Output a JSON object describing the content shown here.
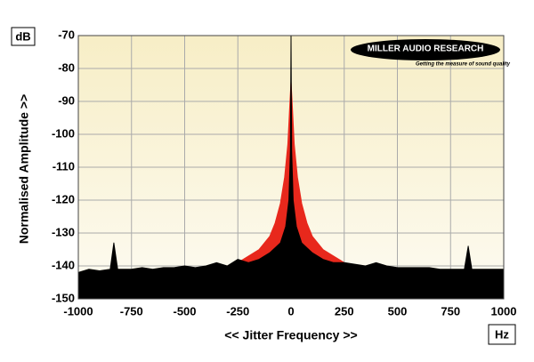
{
  "chart_data": {
    "type": "area",
    "x_label": "<< Jitter Frequency >>",
    "y_label": "Normalised Amplitude >>",
    "x_unit": "Hz",
    "y_unit": "dB",
    "logo": "MILLER AUDIO RESEARCH",
    "logo_tagline": "Getting the measure of sound quality",
    "xlim": [
      -1000,
      1000
    ],
    "ylim": [
      -150,
      -70
    ],
    "xticks": [
      -1000,
      -750,
      -500,
      -250,
      0,
      250,
      500,
      750,
      1000
    ],
    "yticks": [
      -150,
      -140,
      -130,
      -120,
      -110,
      -100,
      -90,
      -80,
      -70
    ],
    "grid": true,
    "series": [
      {
        "color": "#e8281c",
        "x": [
          -400,
          -300,
          -250,
          -200,
          -150,
          -100,
          -75,
          -50,
          -30,
          -15,
          -5,
          0,
          5,
          15,
          30,
          50,
          75,
          100,
          150,
          200,
          250,
          300,
          400
        ],
        "values": [
          -141,
          -140,
          -139,
          -137,
          -135,
          -131,
          -127,
          -121,
          -113,
          -103,
          -90,
          -84,
          -90,
          -103,
          -113,
          -121,
          -127,
          -131,
          -135,
          -137,
          -139,
          -140,
          -141
        ]
      },
      {
        "color": "#000000",
        "x": [
          -1000,
          -950,
          -900,
          -850,
          -833,
          -815,
          -750,
          -700,
          -650,
          -600,
          -550,
          -500,
          -450,
          -400,
          -350,
          -300,
          -250,
          -200,
          -150,
          -100,
          -50,
          -25,
          -10,
          -3,
          0,
          3,
          10,
          25,
          50,
          100,
          150,
          200,
          250,
          300,
          350,
          400,
          450,
          500,
          550,
          600,
          650,
          700,
          750,
          815,
          833,
          850,
          900,
          950,
          1000
        ],
        "values": [
          -142,
          -141,
          -141.5,
          -141,
          -133,
          -141,
          -141,
          -140.5,
          -141,
          -140.5,
          -140.5,
          -140,
          -140.5,
          -140,
          -139,
          -140,
          -138,
          -139,
          -138,
          -136,
          -133,
          -128,
          -120,
          -105,
          -70,
          -105,
          -120,
          -128,
          -133,
          -136,
          -138,
          -139,
          -139,
          -139.5,
          -140,
          -139,
          -140,
          -140.5,
          -140.5,
          -140.5,
          -140.5,
          -141,
          -141,
          -141,
          -134,
          -141,
          -141,
          -141,
          -141
        ]
      }
    ]
  }
}
